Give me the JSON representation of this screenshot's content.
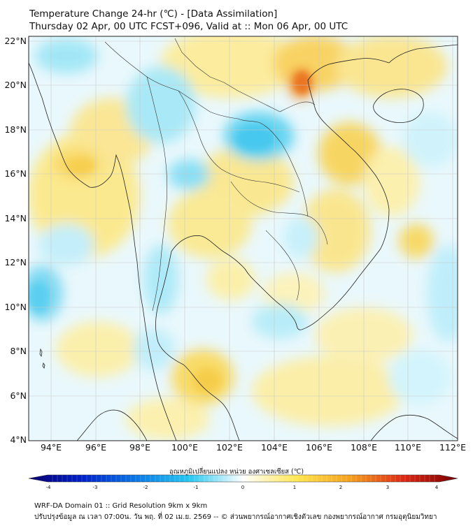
{
  "header": {
    "title_line1": "Temperature Change 24-hr (℃) - [Data Assimilation]",
    "title_line2": "Thursday 02 Apr, 00 UTC FCST+096, Valid at :: Mon 06 Apr, 00 UTC"
  },
  "map": {
    "lat_labels": [
      "22°N",
      "20°N",
      "18°N",
      "16°N",
      "14°N",
      "12°N",
      "10°N",
      "8°N",
      "6°N",
      "4°N"
    ],
    "lon_labels": [
      "94°E",
      "96°E",
      "98°E",
      "100°E",
      "102°E",
      "104°E",
      "106°E",
      "108°E",
      "110°E",
      "112°E"
    ],
    "lat_range": [
      4,
      22
    ],
    "lon_range": [
      93,
      112.2
    ]
  },
  "colorbar": {
    "title": "อุณหภูมิเปลี่ยนแปลง หน่วย องศาเซลเซียส (℃)",
    "ticks": [
      "-4",
      "-3",
      "-2",
      "-1",
      "0",
      "1",
      "2",
      "3",
      "4"
    ],
    "min": -4,
    "max": 4,
    "colors": [
      "#08006e",
      "#0020c8",
      "#0a78e6",
      "#28c8f0",
      "#ffffff",
      "#ffe650",
      "#f5a01e",
      "#dc2814",
      "#780000"
    ]
  },
  "footer": {
    "line1": "WRF-DA Domain 01 :: Grid Resolution 9km x 9km",
    "line2": "ปรับปรุงข้อมูล ณ เวลา 07:00น. วัน พฤ. ที่ 02 เม.ย. 2569 -- © ส่วนพยากรณ์อากาศเชิงตัวเลข กองพยากรณ์อากาศ กรมอุตุนิยมวิทยา"
  }
}
